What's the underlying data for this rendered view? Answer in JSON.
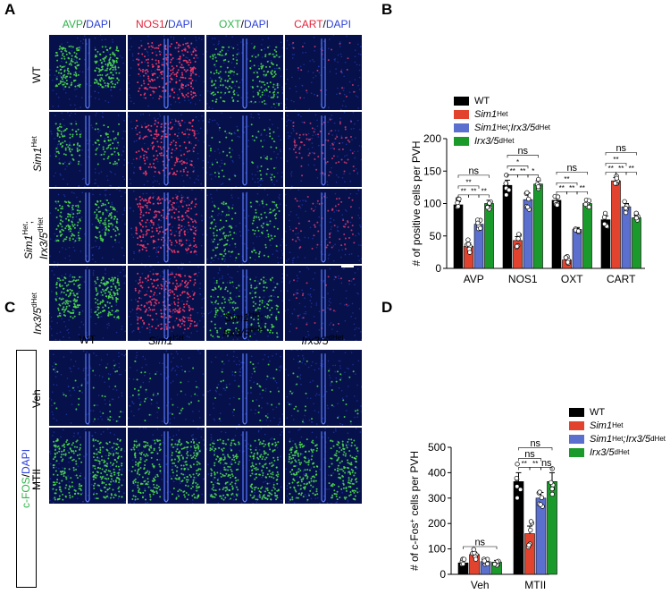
{
  "panels": {
    "A": {
      "label": "A",
      "columns": [
        {
          "marker": "AVP",
          "counter": "DAPI",
          "marker_color": "#2fb34a"
        },
        {
          "marker": "NOS1",
          "counter": "DAPI",
          "marker_color": "#e2233a"
        },
        {
          "marker": "OXT",
          "counter": "DAPI",
          "marker_color": "#2fb34a"
        },
        {
          "marker": "CART",
          "counter": "DAPI",
          "marker_color": "#e2233a"
        }
      ],
      "separator": "/",
      "rows": [
        {
          "main": "WT",
          "sup": ""
        },
        {
          "main": "Sim1",
          "sup": "Het"
        },
        {
          "main": "Sim1",
          "sup": "Het",
          "suffix": ";",
          "main2": "Irx3/5",
          "sup2": "dHet"
        },
        {
          "main": "Irx3/5",
          "sup": "dHet"
        }
      ]
    },
    "B": {
      "label": "B"
    },
    "C": {
      "label": "C",
      "columns": [
        {
          "main": "WT",
          "sup": ""
        },
        {
          "main": "Sim1",
          "sup": "Het"
        },
        {
          "main": "Sim1",
          "sup": "Het",
          "suffix": ";",
          "main2": "Irx3/5",
          "sup2": "dHet"
        },
        {
          "main": "Irx3/5",
          "sup": "dHet"
        }
      ],
      "side_label_marker": "c-FOS",
      "side_label_counter": "DAPI",
      "rows": [
        "Veh",
        "MTII"
      ]
    },
    "D": {
      "label": "D"
    }
  },
  "legend": [
    {
      "main": "WT",
      "sup": "",
      "main2": "",
      "sup2": "",
      "color": "#000000"
    },
    {
      "main": "Sim1",
      "sup": "Het",
      "main2": "",
      "sup2": "",
      "color": "#e2432f"
    },
    {
      "main": "Sim1",
      "sup": "Het",
      "main2": ";Irx3/5",
      "sup2": "dHet",
      "color": "#5b6fce"
    },
    {
      "main": "Irx3/5",
      "sup": "dHet",
      "main2": "",
      "sup2": "",
      "color": "#1a9a2b"
    }
  ],
  "chart_data": [
    {
      "type": "bar",
      "panel": "B",
      "ylabel": "# of positive cells per PVH",
      "ylim": [
        0,
        200
      ],
      "yticks": [
        0,
        50,
        100,
        150,
        200
      ],
      "categories": [
        "AVP",
        "NOS1",
        "OXT",
        "CART"
      ],
      "series": [
        {
          "name": "WT",
          "values": [
            98,
            128,
            105,
            75
          ],
          "errors": [
            5,
            8,
            5,
            6
          ]
        },
        {
          "name": "Sim1Het",
          "values": [
            34,
            43,
            13,
            135
          ],
          "errors": [
            5,
            6,
            3,
            5
          ]
        },
        {
          "name": "Sim1Het;Irx3/5dHet",
          "values": [
            68,
            106,
            60,
            95
          ],
          "errors": [
            4,
            10,
            3,
            5
          ]
        },
        {
          "name": "Irx3/5dHet",
          "values": [
            100,
            130,
            100,
            78
          ],
          "errors": [
            5,
            5,
            3,
            4
          ]
        }
      ],
      "annotations": [
        {
          "group": "AVP",
          "bars": [
            0,
            3
          ],
          "text": "ns",
          "level": 3
        },
        {
          "group": "AVP",
          "bars": [
            0,
            2
          ],
          "text": "**",
          "level": 2
        },
        {
          "group": "AVP",
          "bars": [
            0,
            1
          ],
          "text": "**",
          "level": 1
        },
        {
          "group": "AVP",
          "bars": [
            1,
            2
          ],
          "text": "**",
          "level": 1
        },
        {
          "group": "AVP",
          "bars": [
            2,
            3
          ],
          "text": "**",
          "level": 1
        },
        {
          "group": "NOS1",
          "bars": [
            0,
            3
          ],
          "text": "ns",
          "level": 3
        },
        {
          "group": "NOS1",
          "bars": [
            0,
            2
          ],
          "text": "*",
          "level": 2
        },
        {
          "group": "NOS1",
          "bars": [
            0,
            1
          ],
          "text": "**",
          "level": 1
        },
        {
          "group": "NOS1",
          "bars": [
            1,
            2
          ],
          "text": "**",
          "level": 1
        },
        {
          "group": "NOS1",
          "bars": [
            2,
            3
          ],
          "text": "*",
          "level": 1
        },
        {
          "group": "OXT",
          "bars": [
            0,
            3
          ],
          "text": "ns",
          "level": 3
        },
        {
          "group": "OXT",
          "bars": [
            0,
            2
          ],
          "text": "**",
          "level": 2
        },
        {
          "group": "OXT",
          "bars": [
            0,
            1
          ],
          "text": "**",
          "level": 1
        },
        {
          "group": "OXT",
          "bars": [
            1,
            2
          ],
          "text": "**",
          "level": 1
        },
        {
          "group": "OXT",
          "bars": [
            2,
            3
          ],
          "text": "**",
          "level": 1
        },
        {
          "group": "CART",
          "bars": [
            0,
            3
          ],
          "text": "ns",
          "level": 3
        },
        {
          "group": "CART",
          "bars": [
            0,
            2
          ],
          "text": "**",
          "level": 2
        },
        {
          "group": "CART",
          "bars": [
            0,
            1
          ],
          "text": "**",
          "level": 1
        },
        {
          "group": "CART",
          "bars": [
            1,
            2
          ],
          "text": "**",
          "level": 1
        },
        {
          "group": "CART",
          "bars": [
            2,
            3
          ],
          "text": "**",
          "level": 1
        }
      ]
    },
    {
      "type": "bar",
      "panel": "D",
      "ylabel_pre": "# of c-Fos",
      "ylabel_sup": "+",
      "ylabel_post": " cells per PVH",
      "ylim": [
        0,
        500
      ],
      "yticks": [
        0,
        100,
        200,
        300,
        400,
        500
      ],
      "categories": [
        "Veh",
        "MTII"
      ],
      "series": [
        {
          "name": "WT",
          "values": [
            45,
            365
          ],
          "errors": [
            8,
            35
          ]
        },
        {
          "name": "Sim1Het",
          "values": [
            78,
            160
          ],
          "errors": [
            10,
            30
          ]
        },
        {
          "name": "Sim1Het;Irx3/5dHet",
          "values": [
            50,
            300
          ],
          "errors": [
            6,
            22
          ]
        },
        {
          "name": "Irx3/5dHet",
          "values": [
            48,
            365
          ],
          "errors": [
            7,
            35
          ]
        }
      ],
      "annotations": [
        {
          "group": "Veh",
          "bars": [
            0,
            3
          ],
          "text": "ns",
          "level": 1
        },
        {
          "group": "MTII",
          "bars": [
            0,
            3
          ],
          "text": "ns",
          "level": 3
        },
        {
          "group": "MTII",
          "bars": [
            0,
            2
          ],
          "text": "ns",
          "level": 2
        },
        {
          "group": "MTII",
          "bars": [
            0,
            1
          ],
          "text": "**",
          "level": 1
        },
        {
          "group": "MTII",
          "bars": [
            1,
            2
          ],
          "text": "**",
          "level": 1
        },
        {
          "group": "MTII",
          "bars": [
            2,
            3
          ],
          "text": "ns",
          "level": 1
        }
      ]
    }
  ]
}
